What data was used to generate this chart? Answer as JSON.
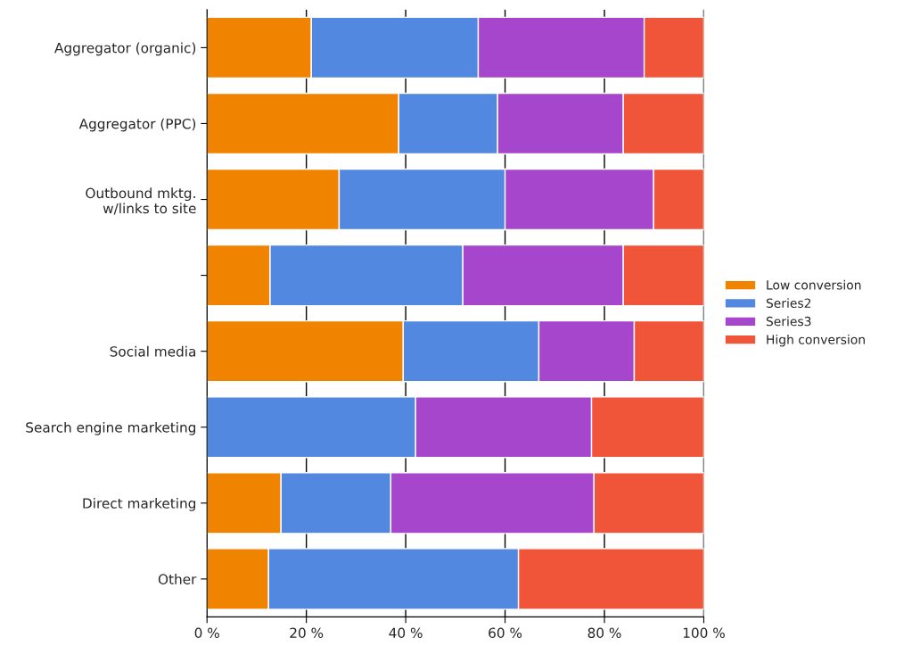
{
  "chart_data": {
    "type": "bar",
    "orientation": "horizontal",
    "stacked": true,
    "categories": [
      "Aggregator (organic)",
      "Aggregator (PPC)",
      "Outbound mktg.\nw/links to site",
      null,
      "Social media",
      "Search engine marketing",
      "Direct marketing",
      "Other"
    ],
    "series": [
      {
        "name": "Low conversion",
        "color": "#f08400",
        "values": [
          21.0,
          38.6,
          26.6,
          12.7,
          39.5,
          0,
          14.9,
          12.4
        ]
      },
      {
        "name": "Series2",
        "color": "#5288e0",
        "values": [
          33.6,
          19.9,
          33.4,
          38.8,
          27.3,
          42.0,
          22.1,
          50.3
        ]
      },
      {
        "name": "Series3",
        "color": "#a646cc",
        "values": [
          33.4,
          25.3,
          29.9,
          32.3,
          19.2,
          35.4,
          40.9,
          0
        ]
      },
      {
        "name": "High conversion",
        "color": "#f0553a",
        "values": [
          12.0,
          16.2,
          10.1,
          16.2,
          14.0,
          22.6,
          22.1,
          37.3
        ]
      }
    ],
    "xlim": [
      0,
      100
    ],
    "xticks": [
      {
        "value": 0,
        "label": "0 %"
      },
      {
        "value": 20,
        "label": "20 %"
      },
      {
        "value": 40,
        "label": "40 %"
      },
      {
        "value": 60,
        "label": "60 %"
      },
      {
        "value": 80,
        "label": "80 %"
      },
      {
        "value": 100,
        "label": "100 %"
      }
    ],
    "grid": "x",
    "legend": "right"
  }
}
